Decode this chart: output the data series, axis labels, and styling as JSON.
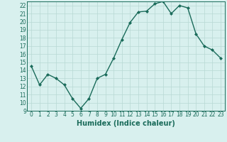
{
  "x": [
    0,
    1,
    2,
    3,
    4,
    5,
    6,
    7,
    8,
    9,
    10,
    11,
    12,
    13,
    14,
    15,
    16,
    17,
    18,
    19,
    20,
    21,
    22,
    23
  ],
  "y": [
    14.5,
    12.2,
    13.5,
    13.0,
    12.2,
    10.5,
    9.3,
    10.5,
    13.0,
    13.5,
    15.5,
    17.8,
    19.9,
    21.2,
    21.3,
    22.2,
    22.5,
    21.0,
    22.0,
    21.7,
    18.5,
    17.0,
    16.5,
    15.5
  ],
  "line_color": "#1a6b5a",
  "marker": "D",
  "marker_size": 2.0,
  "bg_color": "#d8f0ee",
  "grid_color": "#b8d8d4",
  "xlabel": "Humidex (Indice chaleur)",
  "ylim": [
    9,
    22.5
  ],
  "xlim": [
    -0.5,
    23.5
  ],
  "yticks": [
    9,
    10,
    11,
    12,
    13,
    14,
    15,
    16,
    17,
    18,
    19,
    20,
    21,
    22
  ],
  "xticks": [
    0,
    1,
    2,
    3,
    4,
    5,
    6,
    7,
    8,
    9,
    10,
    11,
    12,
    13,
    14,
    15,
    16,
    17,
    18,
    19,
    20,
    21,
    22,
    23
  ],
  "tick_label_fontsize": 5.5,
  "xlabel_fontsize": 7.0,
  "line_width": 1.0
}
